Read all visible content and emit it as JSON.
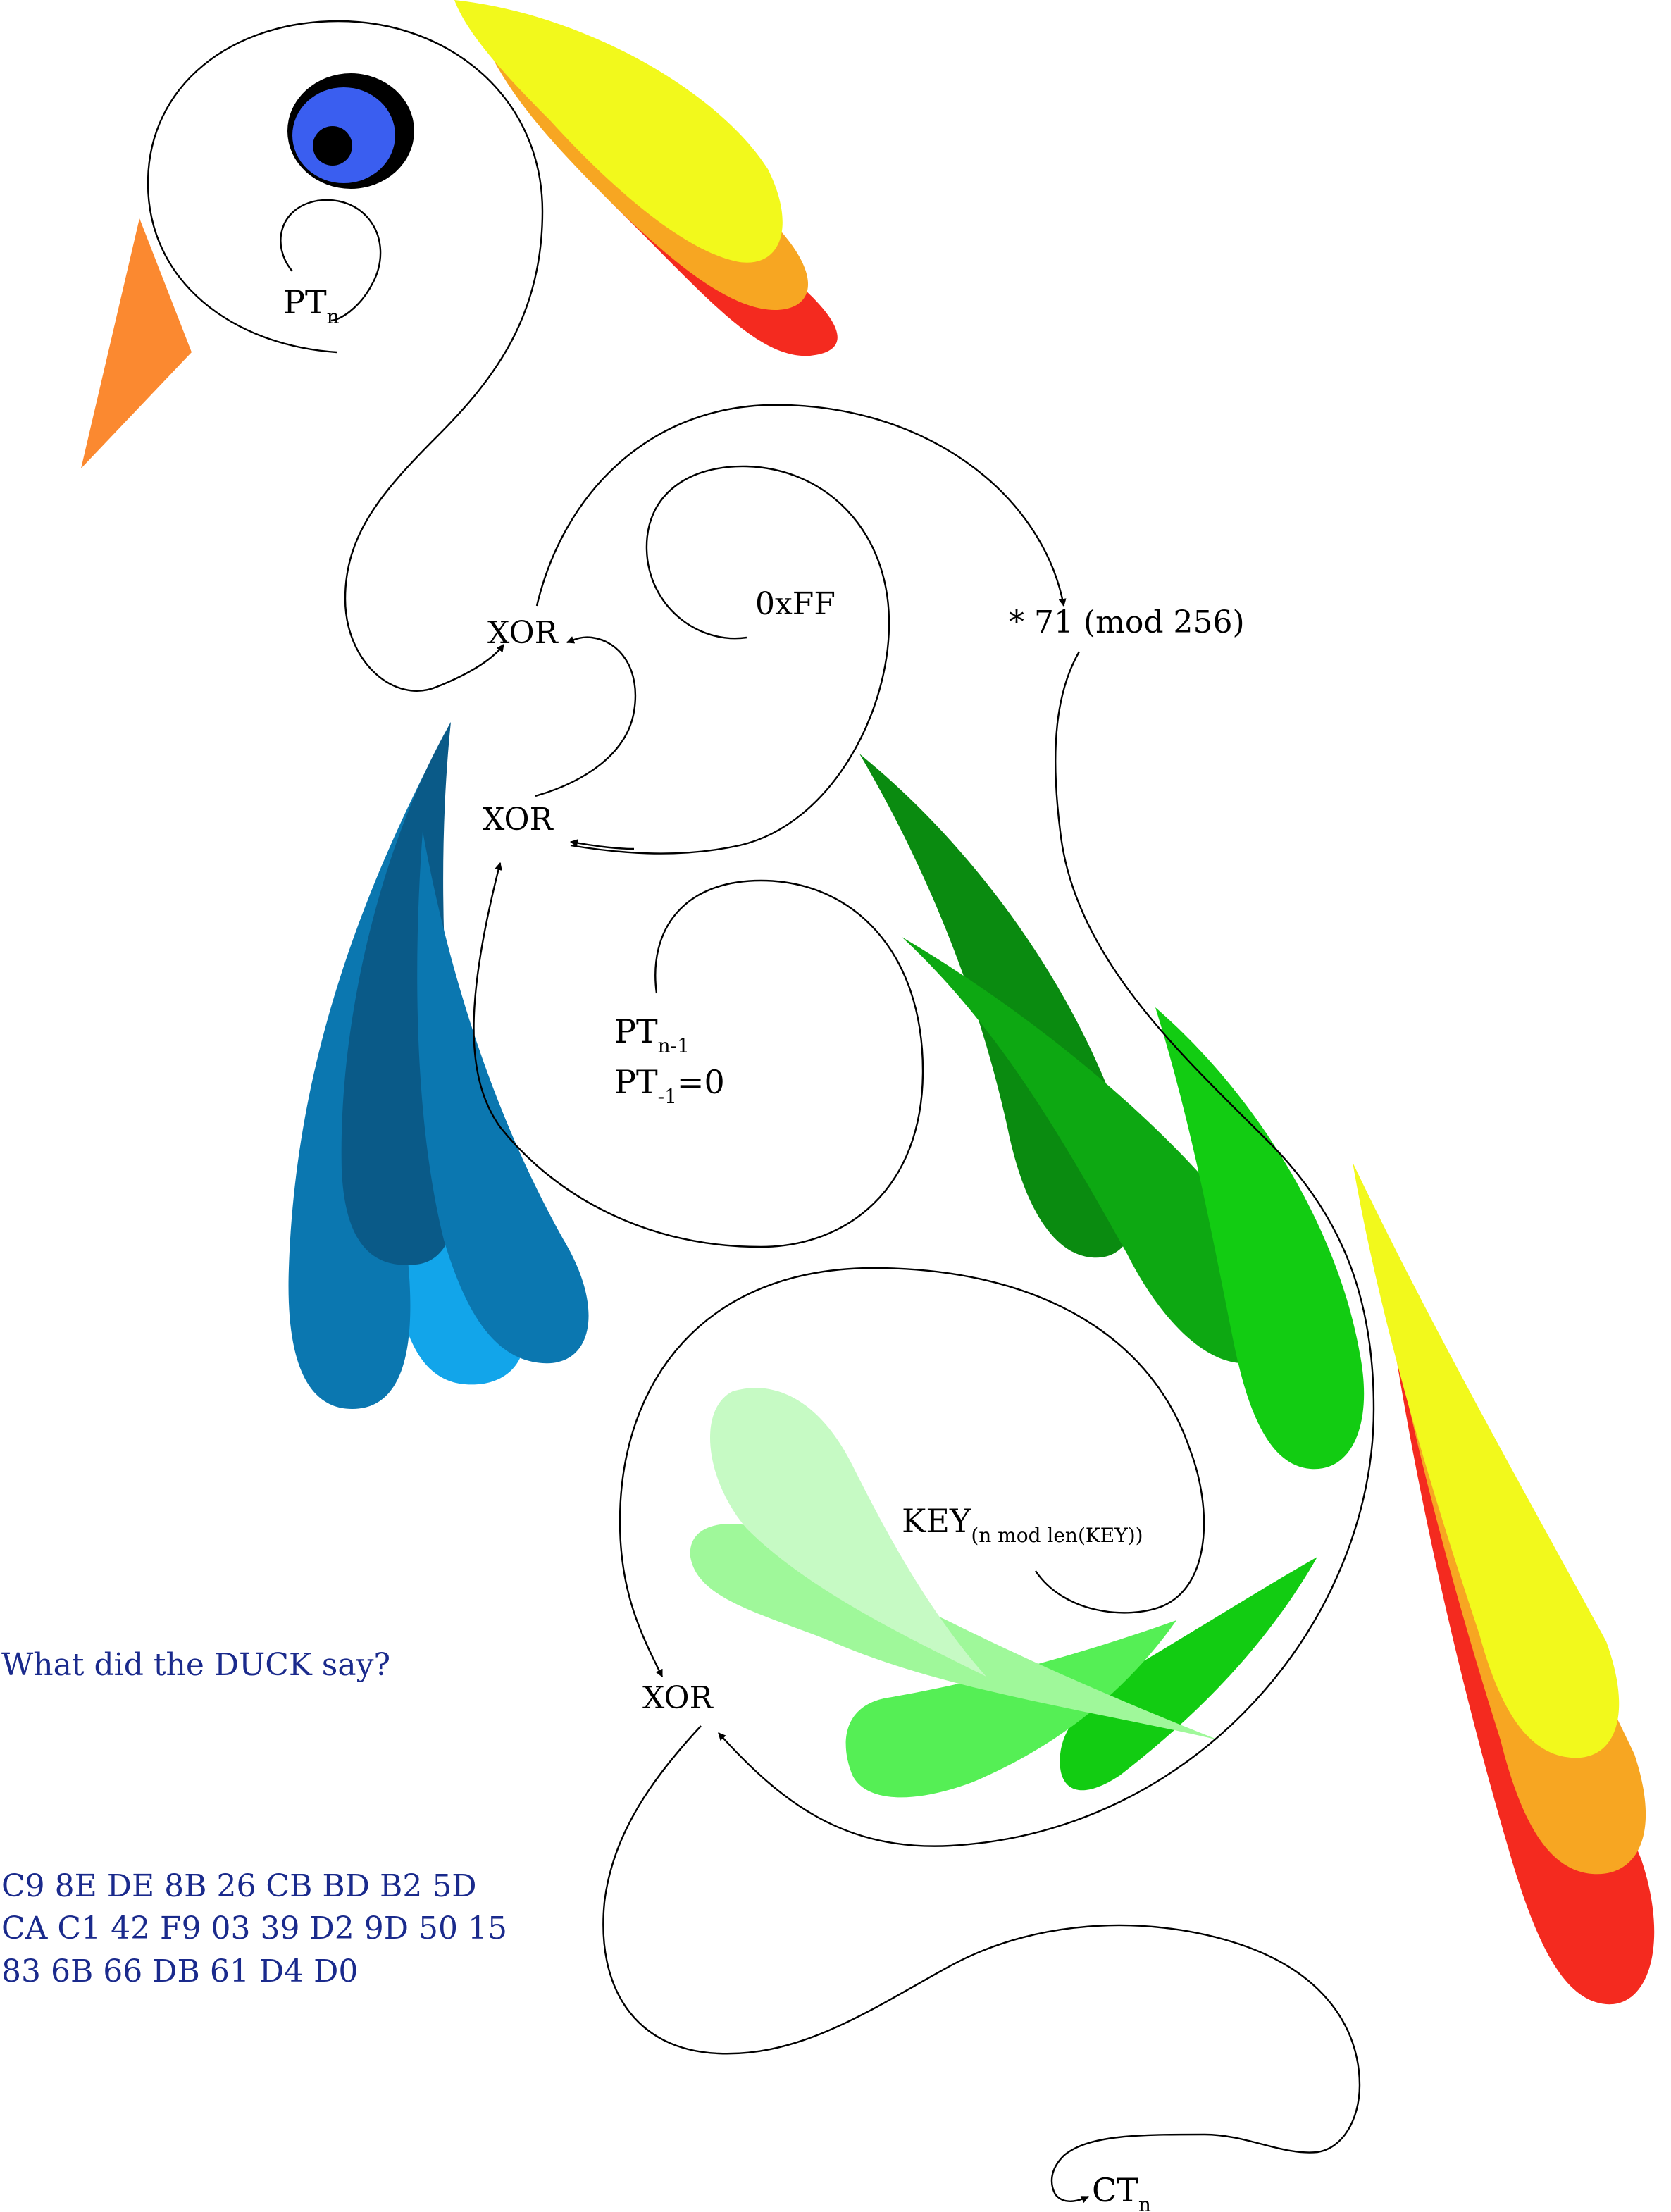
{
  "colors": {
    "stroke": "#000000",
    "question": "#1a2a8c",
    "beak": "#fb8930",
    "eye_outer": "#000000",
    "eye_iris": "#3a5ef0",
    "eye_pupil": "#000000",
    "crest_yellow": "#f2f91c",
    "crest_orange": "#f7a622",
    "crest_red": "#f42a1f",
    "blue_dark": "#0a5a88",
    "blue_mid": "#0b77b0",
    "blue_light": "#12a5ea",
    "green_dark": "#0a8b10",
    "green_mid": "#0da812",
    "green_bright": "#12cc12",
    "green_lime": "#55ef55",
    "green_pale": "#9ff89a",
    "green_paler": "#c6fac4"
  },
  "labels": {
    "pt_n": {
      "main": "PT",
      "sub": "n"
    },
    "xor_top": "XOR",
    "xor_mid": "XOR",
    "xor_bottom": "XOR",
    "const_ff": "0xFF",
    "mult": "* 71 (mod 256)",
    "pt_prev": {
      "main": "PT",
      "sub": "n-1"
    },
    "pt_init": {
      "main": "PT",
      "sub": "-1",
      "rest": "=0"
    },
    "key": {
      "main": "KEY",
      "sub": "(n mod len(KEY))"
    },
    "ct_n": {
      "main": "CT",
      "sub": "n"
    }
  },
  "question": "What did the DUCK say?",
  "ciphertext_lines": [
    "C9 8E DE 8B 26 CB BD B2 5D",
    "CA C1 42 F9 03 39 D2 9D 50 15",
    "83 6B 66 DB 61 D4 D0"
  ]
}
